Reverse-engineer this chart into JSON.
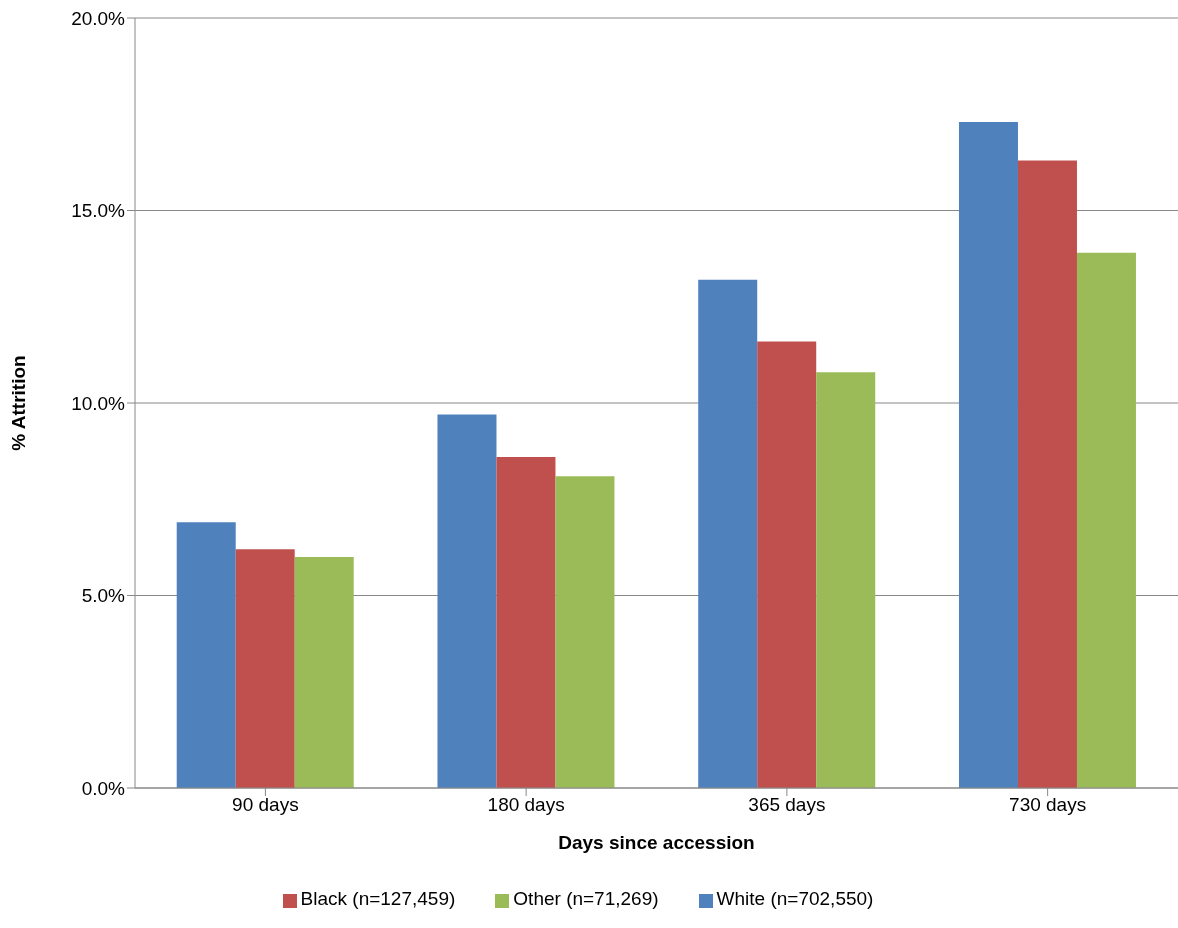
{
  "chart_data": {
    "type": "bar",
    "xlabel": "Days since accession",
    "ylabel": "%  Attrition",
    "categories": [
      "90 days",
      "180 days",
      "365 days",
      "730 days"
    ],
    "series": [
      {
        "name": "White (n=702,550)",
        "color": "#4f81bd",
        "values": [
          6.9,
          9.7,
          13.2,
          17.3
        ]
      },
      {
        "name": "Black (n=127,459)",
        "color": "#c0504d",
        "values": [
          6.2,
          8.6,
          11.6,
          16.3
        ]
      },
      {
        "name": "Other (n=71,269)",
        "color": "#9bbb59",
        "values": [
          6.0,
          8.1,
          10.8,
          13.9
        ]
      }
    ],
    "ylim": [
      0,
      20
    ],
    "yticks": [
      {
        "value": 0,
        "label": "0.0%"
      },
      {
        "value": 5,
        "label": "5.0%"
      },
      {
        "value": 10,
        "label": "10.0%"
      },
      {
        "value": 15,
        "label": "15.0%"
      },
      {
        "value": 20,
        "label": "20.0%"
      }
    ],
    "grid": "y",
    "legend": "bottom"
  }
}
